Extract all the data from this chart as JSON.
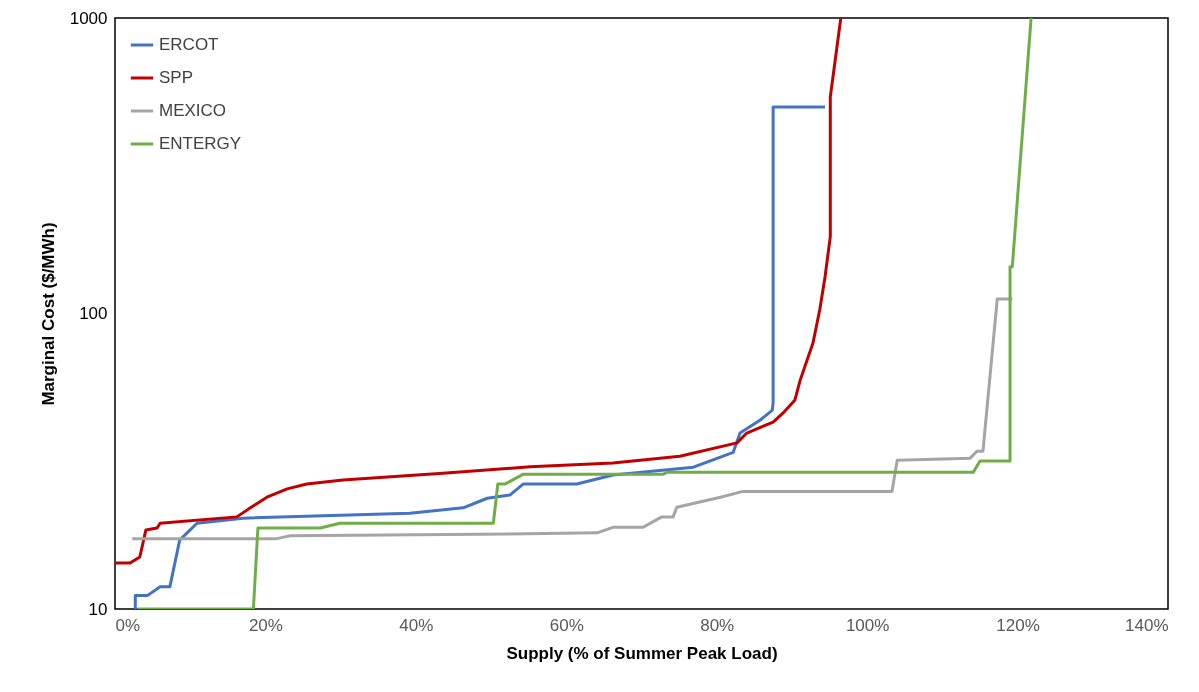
{
  "chart_data": {
    "type": "line",
    "xlabel": "Supply (% of Summer Peak Load)",
    "ylabel": "Marginal Cost ($/MWh)",
    "log": "y",
    "legend": "top left",
    "xlim": [
      0,
      140
    ],
    "xticks": [
      {
        "value": 0,
        "label": "0%"
      },
      {
        "value": 20,
        "label": "20%"
      },
      {
        "value": 40,
        "label": "40%"
      },
      {
        "value": 60,
        "label": "60%"
      },
      {
        "value": 80,
        "label": "80%"
      },
      {
        "value": 100,
        "label": "100%"
      },
      {
        "value": 120,
        "label": "120%"
      },
      {
        "value": 140,
        "label": "140%"
      }
    ],
    "ylim": [
      10,
      1000
    ],
    "yticks": [
      10,
      100,
      1000
    ],
    "series": [
      {
        "name": "ERCOT",
        "color": "#4472c4",
        "x": [
          2.7,
          2.7,
          4.3,
          6,
          7.3,
          7.7,
          8.6,
          10.9,
          17,
          39.2,
          46.3,
          49.5,
          52.5,
          54.3,
          61.4,
          66.2,
          76.9,
          82.2,
          83.1,
          85.8,
          87.4,
          87.5,
          87.5,
          94.4
        ],
        "values": [
          10,
          11.1,
          11.1,
          11.9,
          11.9,
          13.3,
          17.1,
          19.5,
          20.3,
          21.1,
          22,
          23.7,
          24.3,
          26.5,
          26.5,
          28.4,
          30.2,
          33.9,
          39.4,
          43.6,
          47.1,
          50,
          500,
          500
        ]
      },
      {
        "name": "SPP",
        "color": "#c00000",
        "x": [
          0,
          2,
          3.3,
          4.1,
          5.6,
          6,
          16.2,
          18,
          20.2,
          22.9,
          25.5,
          30.3,
          43.6,
          55.2,
          66.2,
          75.1,
          82.7,
          84,
          87.5,
          88.8,
          90.4,
          91.1,
          92.8,
          93.7,
          94.4,
          95.1,
          95.1,
          96.5
        ],
        "values": [
          14.3,
          14.3,
          15,
          18.5,
          18.8,
          19.5,
          20.5,
          22,
          23.9,
          25.5,
          26.5,
          27.3,
          28.8,
          30.3,
          31.2,
          32.9,
          36.5,
          39.4,
          42.9,
          46,
          51,
          59.5,
          79.5,
          103,
          133,
          182,
          541,
          1000
        ]
      },
      {
        "name": "MEXICO",
        "color": "#a5a5a5",
        "x": [
          2.3,
          21.5,
          23.3,
          48.5,
          64.1,
          66.2,
          70.2,
          72.7,
          74.2,
          74.7,
          80.5,
          83.5,
          103.3,
          104,
          113.7,
          114.6,
          115.4,
          117.3,
          119.3
        ],
        "values": [
          17.3,
          17.3,
          17.7,
          17.9,
          18.1,
          18.9,
          18.9,
          20.5,
          20.5,
          22.1,
          23.9,
          25,
          25,
          31.9,
          32.4,
          34.2,
          34.2,
          112,
          112
        ]
      },
      {
        "name": "ENTERGY",
        "color": "#70ad47",
        "x": [
          3,
          18.4,
          19,
          27.3,
          29.9,
          50.3,
          50.9,
          51.9,
          54.3,
          72.9,
          73.4,
          114.1,
          115,
          119,
          119,
          119.3,
          121.8
        ],
        "values": [
          10,
          10,
          18.8,
          18.8,
          19.5,
          19.5,
          26.5,
          26.5,
          28.6,
          28.6,
          29,
          29,
          31.7,
          31.7,
          144,
          144,
          1000
        ]
      }
    ]
  }
}
